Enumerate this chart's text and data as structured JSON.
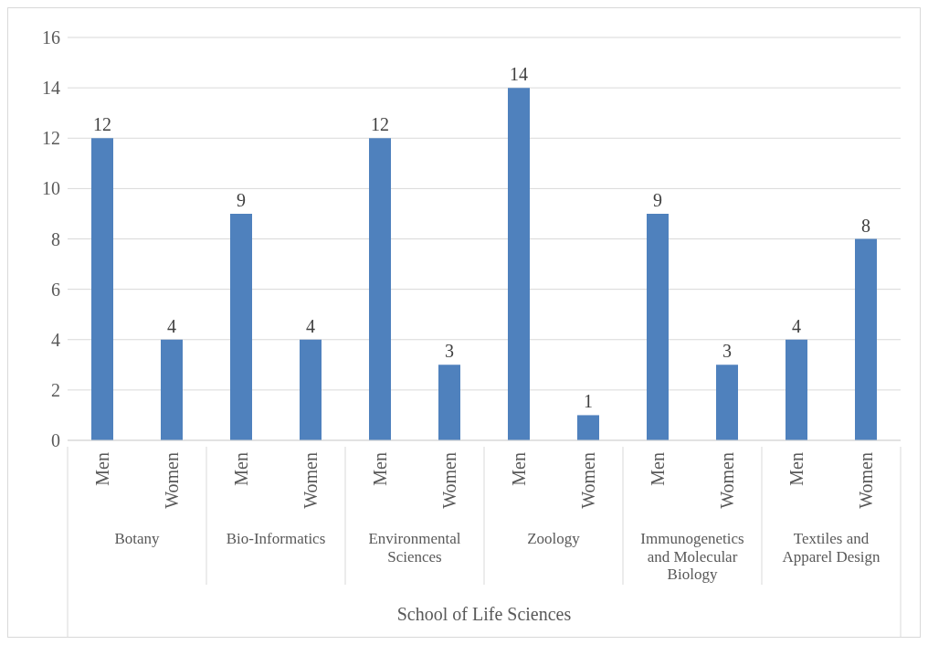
{
  "chart_data": {
    "type": "bar",
    "xlabel": "School of Life Sciences",
    "categories": [
      "Botany",
      "Bio-Informatics",
      "Environmental Sciences",
      "Zoology",
      "Immunogenetics and Molecular Biology",
      "Textiles and Apparel Design"
    ],
    "series": [
      {
        "name": "Men",
        "color": "#4f81bd",
        "values": [
          12,
          9,
          12,
          14,
          9,
          4
        ]
      },
      {
        "name": "Women",
        "color": "#4f81bd",
        "values": [
          4,
          4,
          3,
          1,
          3,
          8
        ]
      }
    ],
    "ylim": [
      0,
      16
    ],
    "yticks": [
      0,
      2,
      4,
      6,
      8,
      10,
      12,
      14,
      16
    ],
    "grid": "y",
    "data_labels": true
  }
}
